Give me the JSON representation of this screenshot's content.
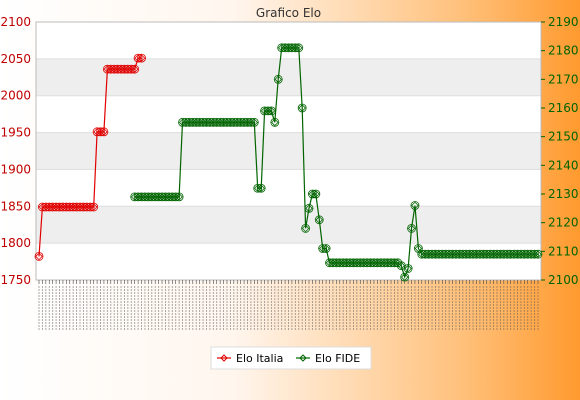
{
  "chart_data": {
    "type": "line",
    "title": "Grafico Elo",
    "xlabel": "",
    "ylabel": "",
    "grid": true,
    "legend_position": "bottom",
    "y_left": {
      "ylim": [
        1750,
        2100
      ],
      "ticks": [
        1750,
        1800,
        1850,
        1900,
        1950,
        2000,
        2050,
        2100
      ],
      "color": "#cc0000"
    },
    "y_right": {
      "ylim": [
        2100,
        2190
      ],
      "ticks": [
        2100,
        2110,
        2120,
        2130,
        2140,
        2150,
        2160,
        2170,
        2180,
        2190
      ],
      "color": "#006400"
    },
    "x_count": 147,
    "series": [
      {
        "name": "Elo Italia",
        "axis": "left",
        "color": "#e00000",
        "marker": "diamond",
        "points": [
          [
            0,
            1782
          ],
          [
            1,
            1849
          ],
          [
            2,
            1849
          ],
          [
            3,
            1849
          ],
          [
            4,
            1849
          ],
          [
            5,
            1849
          ],
          [
            6,
            1849
          ],
          [
            7,
            1849
          ],
          [
            8,
            1849
          ],
          [
            9,
            1849
          ],
          [
            10,
            1849
          ],
          [
            11,
            1849
          ],
          [
            12,
            1849
          ],
          [
            13,
            1849
          ],
          [
            14,
            1849
          ],
          [
            15,
            1849
          ],
          [
            16,
            1849
          ],
          [
            17,
            1951
          ],
          [
            18,
            1951
          ],
          [
            19,
            1951
          ],
          [
            20,
            2036
          ],
          [
            21,
            2036
          ],
          [
            22,
            2036
          ],
          [
            23,
            2036
          ],
          [
            24,
            2036
          ],
          [
            25,
            2036
          ],
          [
            26,
            2036
          ],
          [
            27,
            2036
          ],
          [
            28,
            2036
          ],
          [
            29,
            2051
          ],
          [
            30,
            2051
          ]
        ]
      },
      {
        "name": "Elo FIDE",
        "axis": "right",
        "color": "#006400",
        "marker": "diamond",
        "points": [
          [
            28,
            2129
          ],
          [
            29,
            2129
          ],
          [
            30,
            2129
          ],
          [
            31,
            2129
          ],
          [
            32,
            2129
          ],
          [
            33,
            2129
          ],
          [
            34,
            2129
          ],
          [
            35,
            2129
          ],
          [
            36,
            2129
          ],
          [
            37,
            2129
          ],
          [
            38,
            2129
          ],
          [
            39,
            2129
          ],
          [
            40,
            2129
          ],
          [
            41,
            2129
          ],
          [
            42,
            2155
          ],
          [
            43,
            2155
          ],
          [
            44,
            2155
          ],
          [
            45,
            2155
          ],
          [
            46,
            2155
          ],
          [
            47,
            2155
          ],
          [
            48,
            2155
          ],
          [
            49,
            2155
          ],
          [
            50,
            2155
          ],
          [
            51,
            2155
          ],
          [
            52,
            2155
          ],
          [
            53,
            2155
          ],
          [
            54,
            2155
          ],
          [
            55,
            2155
          ],
          [
            56,
            2155
          ],
          [
            57,
            2155
          ],
          [
            58,
            2155
          ],
          [
            59,
            2155
          ],
          [
            60,
            2155
          ],
          [
            61,
            2155
          ],
          [
            62,
            2155
          ],
          [
            63,
            2155
          ],
          [
            64,
            2132
          ],
          [
            65,
            2132
          ],
          [
            66,
            2159
          ],
          [
            67,
            2159
          ],
          [
            68,
            2159
          ],
          [
            69,
            2155
          ],
          [
            70,
            2170
          ],
          [
            71,
            2181
          ],
          [
            72,
            2181
          ],
          [
            73,
            2181
          ],
          [
            74,
            2181
          ],
          [
            75,
            2181
          ],
          [
            76,
            2181
          ],
          [
            77,
            2160
          ],
          [
            78,
            2118
          ],
          [
            79,
            2125
          ],
          [
            80,
            2130
          ],
          [
            81,
            2130
          ],
          [
            82,
            2121
          ],
          [
            83,
            2111
          ],
          [
            84,
            2111
          ],
          [
            85,
            2106
          ],
          [
            86,
            2106
          ],
          [
            87,
            2106
          ],
          [
            88,
            2106
          ],
          [
            89,
            2106
          ],
          [
            90,
            2106
          ],
          [
            91,
            2106
          ],
          [
            92,
            2106
          ],
          [
            93,
            2106
          ],
          [
            94,
            2106
          ],
          [
            95,
            2106
          ],
          [
            96,
            2106
          ],
          [
            97,
            2106
          ],
          [
            98,
            2106
          ],
          [
            99,
            2106
          ],
          [
            100,
            2106
          ],
          [
            101,
            2106
          ],
          [
            102,
            2106
          ],
          [
            103,
            2106
          ],
          [
            104,
            2106
          ],
          [
            105,
            2106
          ],
          [
            106,
            2105
          ],
          [
            107,
            2101
          ],
          [
            108,
            2104
          ],
          [
            109,
            2118
          ],
          [
            110,
            2126
          ],
          [
            111,
            2111
          ],
          [
            112,
            2109
          ],
          [
            113,
            2109
          ],
          [
            114,
            2109
          ],
          [
            115,
            2109
          ],
          [
            116,
            2109
          ],
          [
            117,
            2109
          ],
          [
            118,
            2109
          ],
          [
            119,
            2109
          ],
          [
            120,
            2109
          ],
          [
            121,
            2109
          ],
          [
            122,
            2109
          ],
          [
            123,
            2109
          ],
          [
            124,
            2109
          ],
          [
            125,
            2109
          ],
          [
            126,
            2109
          ],
          [
            127,
            2109
          ],
          [
            128,
            2109
          ],
          [
            129,
            2109
          ],
          [
            130,
            2109
          ],
          [
            131,
            2109
          ],
          [
            132,
            2109
          ],
          [
            133,
            2109
          ],
          [
            134,
            2109
          ],
          [
            135,
            2109
          ],
          [
            136,
            2109
          ],
          [
            137,
            2109
          ],
          [
            138,
            2109
          ],
          [
            139,
            2109
          ],
          [
            140,
            2109
          ],
          [
            141,
            2109
          ],
          [
            142,
            2109
          ],
          [
            143,
            2109
          ],
          [
            144,
            2109
          ],
          [
            145,
            2109
          ],
          [
            146,
            2109
          ]
        ]
      }
    ],
    "legend": [
      "Elo Italia",
      "Elo FIDE"
    ]
  }
}
